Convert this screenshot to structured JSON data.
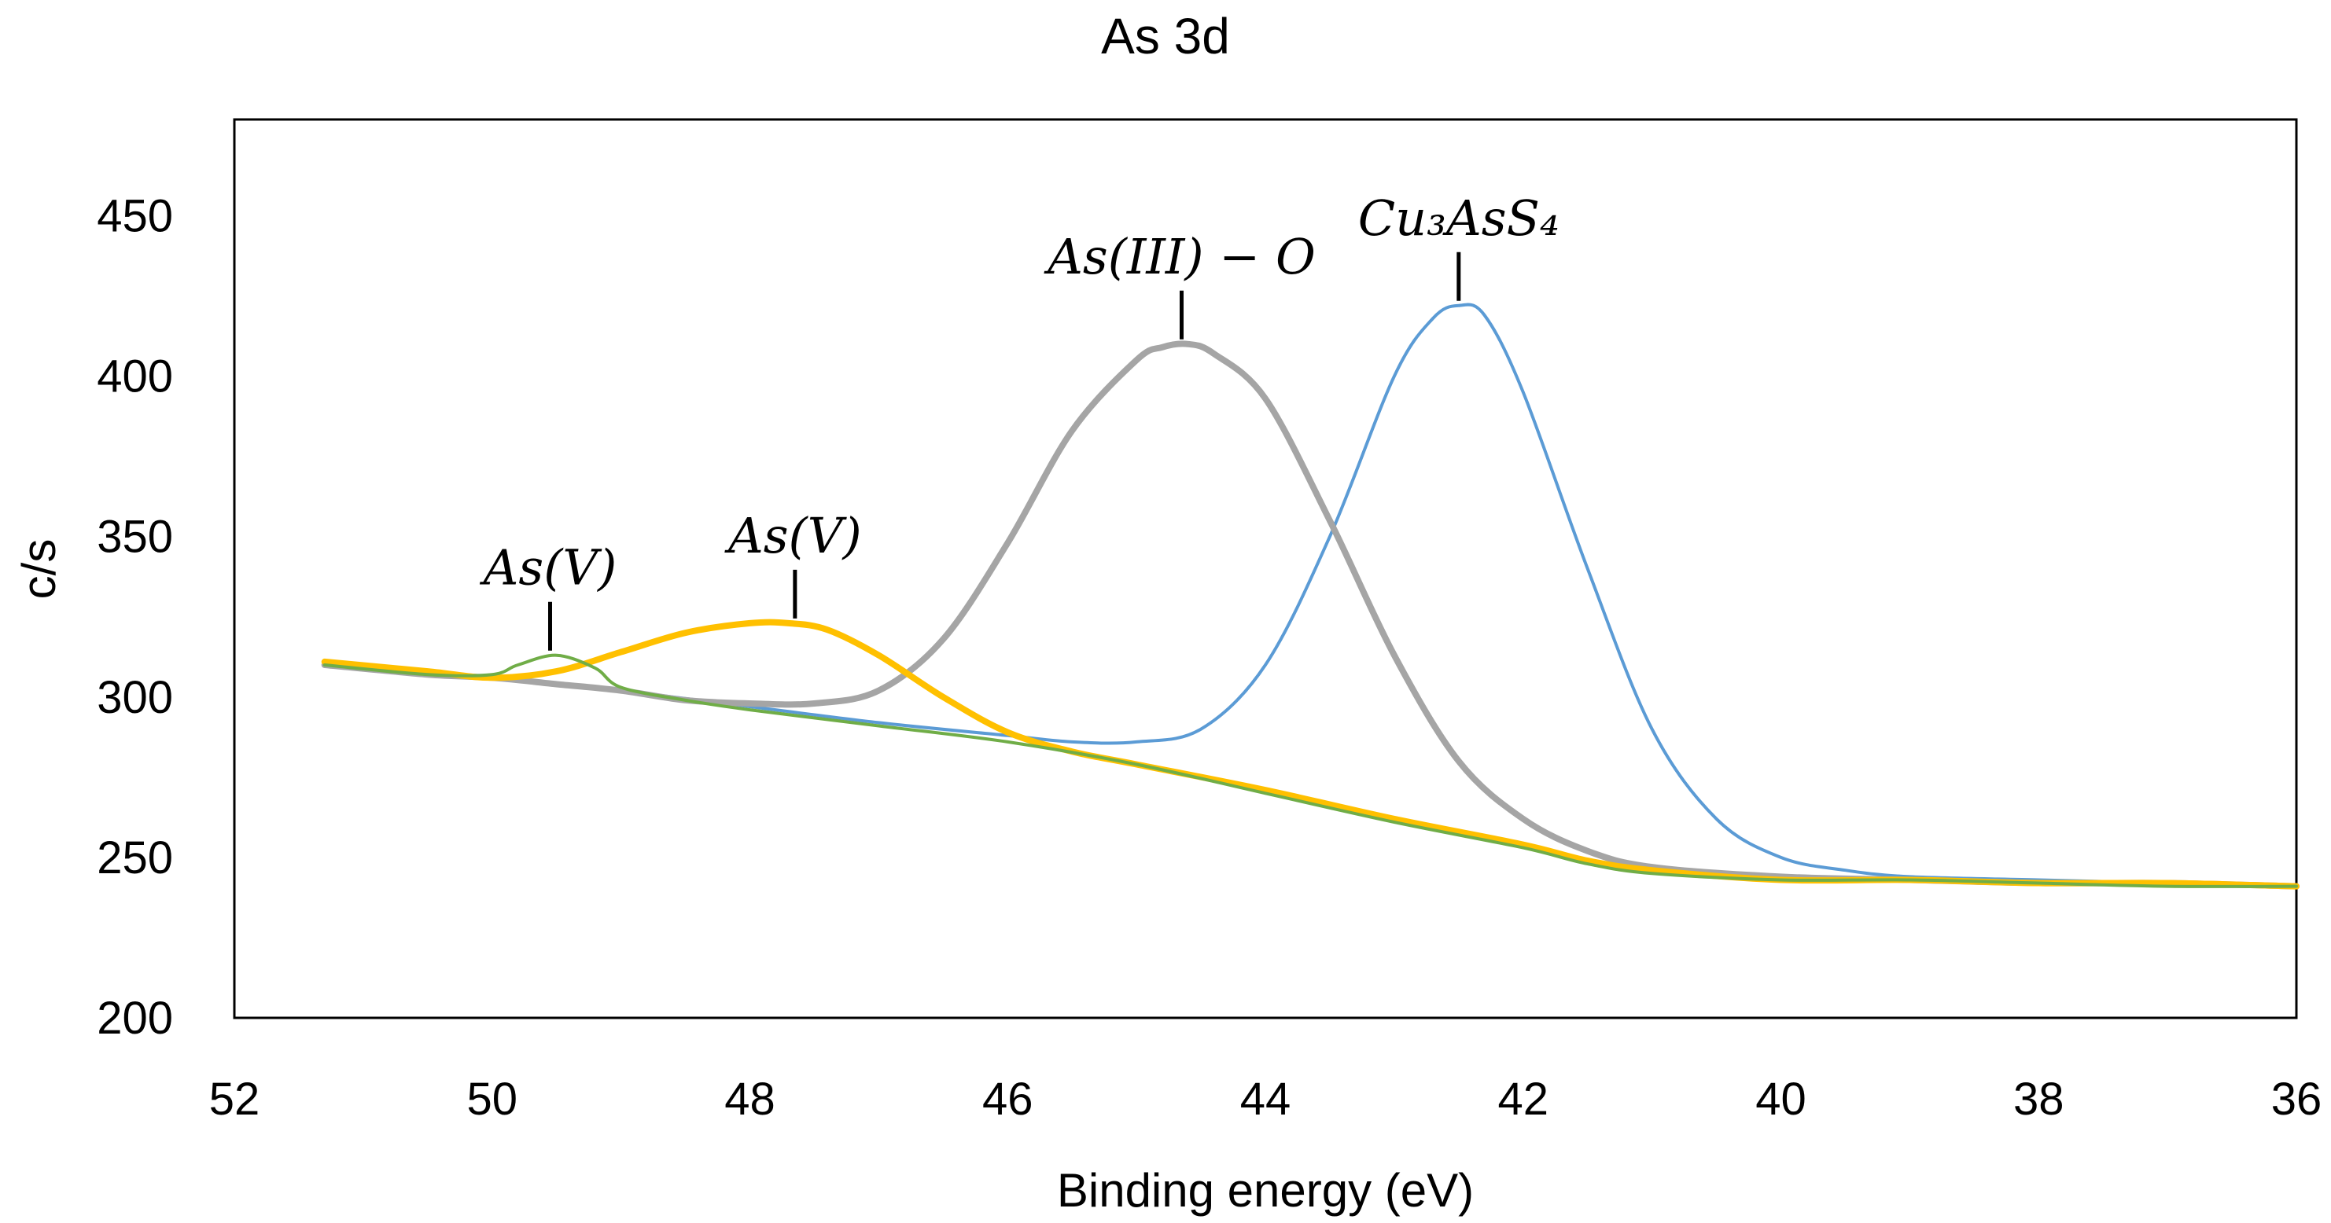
{
  "chart_data": {
    "type": "line",
    "title": "As 3d",
    "xlabel": "Binding energy (eV)",
    "ylabel": "c/s",
    "xlim": [
      52,
      36
    ],
    "ylim": [
      200,
      480
    ],
    "x_ticks": [
      "52",
      "50",
      "48",
      "46",
      "44",
      "42",
      "40",
      "38",
      "36"
    ],
    "y_ticks": [
      "200",
      "250",
      "300",
      "350",
      "400",
      "450"
    ],
    "grid": false,
    "series": [
      {
        "name": "Cu3AsS4",
        "color": "#5B9BD5",
        "x": [
          51.3,
          50.5,
          50.0,
          49.5,
          49.0,
          48.0,
          47.0,
          46.0,
          45.5,
          45.0,
          44.5,
          44.0,
          43.5,
          43.0,
          42.7,
          42.5,
          42.3,
          42.0,
          41.5,
          41.0,
          40.5,
          40.0,
          39.5,
          39.0,
          38.0,
          37.0,
          36.0
        ],
        "y": [
          310,
          307,
          306,
          304,
          302,
          297,
          292,
          288,
          286,
          286,
          290,
          310,
          350,
          400,
          418,
          422,
          419,
          395,
          340,
          290,
          262,
          250,
          246,
          244,
          243,
          242,
          241
        ]
      },
      {
        "name": "As(III) - O",
        "color": "#A5A5A5",
        "x": [
          51.3,
          50.5,
          50.0,
          49.5,
          49.0,
          48.5,
          48.0,
          47.5,
          47.0,
          46.5,
          46.0,
          45.5,
          45.0,
          44.8,
          44.6,
          44.4,
          44.0,
          43.5,
          43.0,
          42.5,
          42.0,
          41.5,
          41.0,
          40.0,
          39.0,
          38.0,
          37.0,
          36.0
        ],
        "y": [
          310,
          307,
          306,
          304,
          302,
          299,
          298,
          298,
          302,
          318,
          348,
          383,
          405,
          409,
          410,
          407,
          393,
          355,
          313,
          280,
          262,
          252,
          247,
          244,
          243,
          242,
          242,
          241
        ]
      },
      {
        "name": "As(V)",
        "color": "#FFC000",
        "x": [
          51.3,
          50.5,
          50.0,
          49.5,
          49.0,
          48.5,
          48.0,
          47.7,
          47.4,
          47.0,
          46.5,
          46.0,
          45.5,
          45.0,
          44.0,
          43.0,
          42.0,
          41.5,
          41.0,
          40.0,
          39.0,
          38.0,
          37.0,
          36.0
        ],
        "y": [
          311,
          308,
          306,
          308,
          314,
          320,
          323,
          323,
          321,
          313,
          300,
          289,
          283,
          279,
          271,
          262,
          254,
          249,
          246,
          243,
          243,
          242,
          242,
          241
        ]
      },
      {
        "name": "As(V)",
        "color": "#70AD47",
        "x": [
          51.3,
          50.5,
          50.0,
          49.8,
          49.5,
          49.2,
          49.0,
          48.5,
          48.0,
          47.0,
          46.0,
          45.0,
          44.0,
          43.0,
          42.0,
          41.5,
          41.0,
          40.0,
          39.0,
          38.0,
          37.0,
          36.0
        ],
        "y": [
          310,
          307,
          307,
          310,
          313,
          309,
          303,
          299,
          296,
          291,
          286,
          279,
          270,
          261,
          253,
          248,
          245,
          243,
          243,
          242,
          241,
          241
        ]
      }
    ],
    "annotations": [
      {
        "label_text": "Cu₃AsS₄",
        "x": 42.5,
        "y": 422
      },
      {
        "label_text": "As(III) − O",
        "x": 44.65,
        "y": 410
      },
      {
        "label_text": "As(V)",
        "x": 47.65,
        "y": 323
      },
      {
        "label_text": "As(V)",
        "x": 49.55,
        "y": 313
      }
    ]
  }
}
